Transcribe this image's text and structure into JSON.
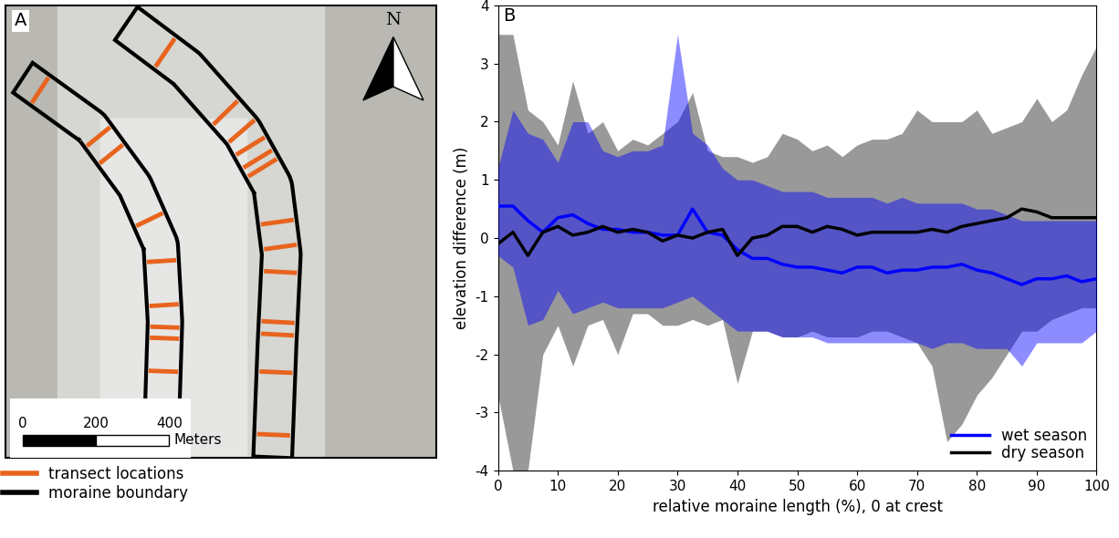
{
  "map": {
    "panel_label": "A",
    "north_label": "N",
    "scale_ticks": [
      0,
      200,
      400
    ],
    "scale_unit": "Meters",
    "legend": [
      {
        "label": "transect locations",
        "color": "#e8641e"
      },
      {
        "label": "moraine boundary",
        "color": "#000000"
      }
    ]
  },
  "chart_data": {
    "type": "line",
    "panel_label": "B",
    "x_label": "relative moraine length (%), 0 at crest",
    "y_label": "elevation difference (m)",
    "xlim": [
      0,
      100
    ],
    "xticks": [
      0,
      10,
      20,
      30,
      40,
      50,
      60,
      70,
      80,
      90,
      100
    ],
    "ylim": [
      -4,
      4
    ],
    "yticks": [
      -4,
      -3,
      -2,
      -1,
      0,
      1,
      2,
      3,
      4
    ],
    "legend": "lower right",
    "grid": false,
    "x": [
      0,
      2.5,
      5,
      7.5,
      10,
      12.5,
      15,
      17.5,
      20,
      22.5,
      25,
      27.5,
      30,
      32.5,
      35,
      37.5,
      40,
      42.5,
      45,
      47.5,
      50,
      52.5,
      55,
      57.5,
      60,
      62.5,
      65,
      67.5,
      70,
      72.5,
      75,
      77.5,
      80,
      82.5,
      85,
      87.5,
      90,
      92.5,
      95,
      97.5,
      100
    ],
    "series": [
      {
        "name": "wet season",
        "color": "#0000ff",
        "values": [
          0.55,
          0.55,
          0.3,
          0.1,
          0.35,
          0.4,
          0.25,
          0.15,
          0.15,
          0.1,
          0.1,
          0.05,
          0.05,
          0.5,
          0.1,
          0.05,
          -0.2,
          -0.35,
          -0.35,
          -0.45,
          -0.5,
          -0.5,
          -0.55,
          -0.6,
          -0.5,
          -0.5,
          -0.6,
          -0.55,
          -0.55,
          -0.5,
          -0.5,
          -0.45,
          -0.55,
          -0.6,
          -0.7,
          -0.8,
          -0.7,
          -0.7,
          -0.65,
          -0.75,
          -0.7
        ],
        "upper": [
          1.2,
          2.2,
          1.8,
          1.7,
          1.3,
          2.0,
          2.0,
          1.5,
          1.4,
          1.5,
          1.5,
          1.6,
          3.5,
          1.8,
          1.6,
          1.2,
          1.0,
          1.0,
          0.9,
          0.8,
          0.8,
          0.8,
          0.7,
          0.7,
          0.7,
          0.7,
          0.6,
          0.7,
          0.6,
          0.6,
          0.6,
          0.6,
          0.5,
          0.5,
          0.4,
          0.3,
          0.3,
          0.3,
          0.3,
          0.3,
          0.3
        ],
        "lower": [
          -0.3,
          -0.5,
          -1.5,
          -1.4,
          -0.9,
          -1.3,
          -1.2,
          -1.1,
          -1.2,
          -1.2,
          -1.2,
          -1.2,
          -1.1,
          -1.0,
          -1.2,
          -1.4,
          -1.6,
          -1.6,
          -1.6,
          -1.7,
          -1.7,
          -1.7,
          -1.8,
          -1.8,
          -1.8,
          -1.8,
          -1.8,
          -1.8,
          -1.8,
          -1.9,
          -1.8,
          -1.8,
          -1.9,
          -1.9,
          -1.9,
          -2.2,
          -1.8,
          -1.8,
          -1.8,
          -1.8,
          -1.6
        ]
      },
      {
        "name": "dry season",
        "color": "#000000",
        "values": [
          -0.1,
          0.1,
          -0.3,
          0.1,
          0.2,
          0.05,
          0.1,
          0.2,
          0.1,
          0.15,
          0.1,
          -0.05,
          0.05,
          0.0,
          0.1,
          0.15,
          -0.3,
          0.0,
          0.05,
          0.2,
          0.2,
          0.1,
          0.2,
          0.15,
          0.05,
          0.1,
          0.1,
          0.1,
          0.1,
          0.15,
          0.1,
          0.2,
          0.25,
          0.3,
          0.35,
          0.5,
          0.45,
          0.35,
          0.35,
          0.35,
          0.35
        ],
        "upper": [
          3.5,
          3.5,
          2.2,
          2.0,
          1.6,
          2.7,
          1.8,
          2.0,
          1.5,
          1.7,
          1.6,
          1.8,
          2.0,
          2.5,
          1.5,
          1.4,
          1.4,
          1.3,
          1.4,
          1.8,
          1.7,
          1.5,
          1.6,
          1.4,
          1.6,
          1.7,
          1.7,
          1.8,
          2.2,
          2.0,
          2.0,
          2.0,
          2.2,
          1.8,
          1.9,
          2.0,
          2.4,
          2.0,
          2.2,
          2.8,
          3.3
        ],
        "lower": [
          -2.7,
          -4.0,
          -4.0,
          -2.0,
          -1.5,
          -2.2,
          -1.5,
          -1.4,
          -2.0,
          -1.3,
          -1.3,
          -1.5,
          -1.5,
          -1.4,
          -1.5,
          -1.4,
          -2.5,
          -1.6,
          -1.6,
          -1.7,
          -1.7,
          -1.6,
          -1.7,
          -1.7,
          -1.7,
          -1.6,
          -1.6,
          -1.7,
          -1.8,
          -2.2,
          -3.5,
          -3.2,
          -2.7,
          -2.4,
          -2.0,
          -1.6,
          -1.6,
          -1.4,
          -1.3,
          -1.2,
          -1.2
        ]
      }
    ]
  }
}
